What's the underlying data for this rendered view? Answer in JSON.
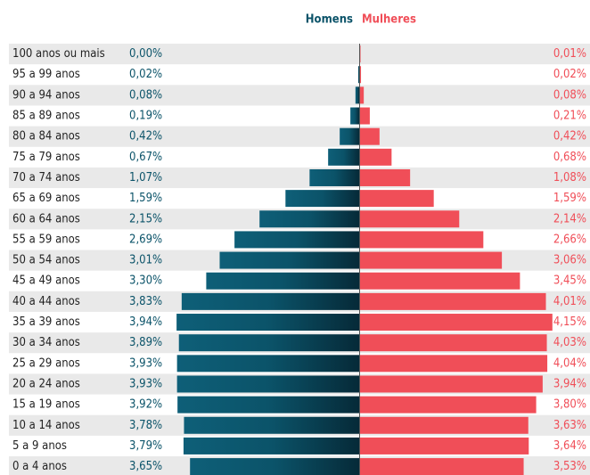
{
  "chart_data": {
    "type": "pyramid",
    "categories": [
      "100 anos ou mais",
      "95 a 99 anos",
      "90 a 94 anos",
      "85 a 89 anos",
      "80 a 84 anos",
      "75 a 79 anos",
      "70 a 74 anos",
      "65 a 69 anos",
      "60 a 64 anos",
      "55 a 59 anos",
      "50 a 54 anos",
      "45 a 49 anos",
      "40 a 44 anos",
      "35 a 39 anos",
      "30 a 34 anos",
      "25 a 29 anos",
      "20 a 24 anos",
      "15 a 19 anos",
      "10 a 14 anos",
      "5 a 9 anos",
      "0 a 4 anos"
    ],
    "series": [
      {
        "name": "Homens",
        "color": "#0b5369",
        "values": [
          0.0,
          0.02,
          0.08,
          0.19,
          0.42,
          0.67,
          1.07,
          1.59,
          2.15,
          2.69,
          3.01,
          3.3,
          3.83,
          3.94,
          3.89,
          3.93,
          3.93,
          3.92,
          3.78,
          3.79,
          3.65
        ],
        "value_labels": [
          "0,00%",
          "0,02%",
          "0,08%",
          "0,19%",
          "0,42%",
          "0,67%",
          "1,07%",
          "1,59%",
          "2,15%",
          "2,69%",
          "3,01%",
          "3,30%",
          "3,83%",
          "3,94%",
          "3,89%",
          "3,93%",
          "3,93%",
          "3,92%",
          "3,78%",
          "3,79%",
          "3,65%"
        ]
      },
      {
        "name": "Mulheres",
        "color": "#f04e58",
        "values": [
          0.01,
          0.02,
          0.08,
          0.21,
          0.42,
          0.68,
          1.08,
          1.59,
          2.14,
          2.66,
          3.06,
          3.45,
          4.01,
          4.15,
          4.03,
          4.04,
          3.94,
          3.8,
          3.63,
          3.64,
          3.53
        ],
        "value_labels": [
          "0,01%",
          "0,02%",
          "0,08%",
          "0,21%",
          "0,42%",
          "0,68%",
          "1,08%",
          "1,59%",
          "2,14%",
          "2,66%",
          "3,06%",
          "3,45%",
          "4,01%",
          "4,15%",
          "4,03%",
          "4,04%",
          "3,94%",
          "3,80%",
          "3,63%",
          "3,64%",
          "3,53%"
        ]
      }
    ]
  }
}
